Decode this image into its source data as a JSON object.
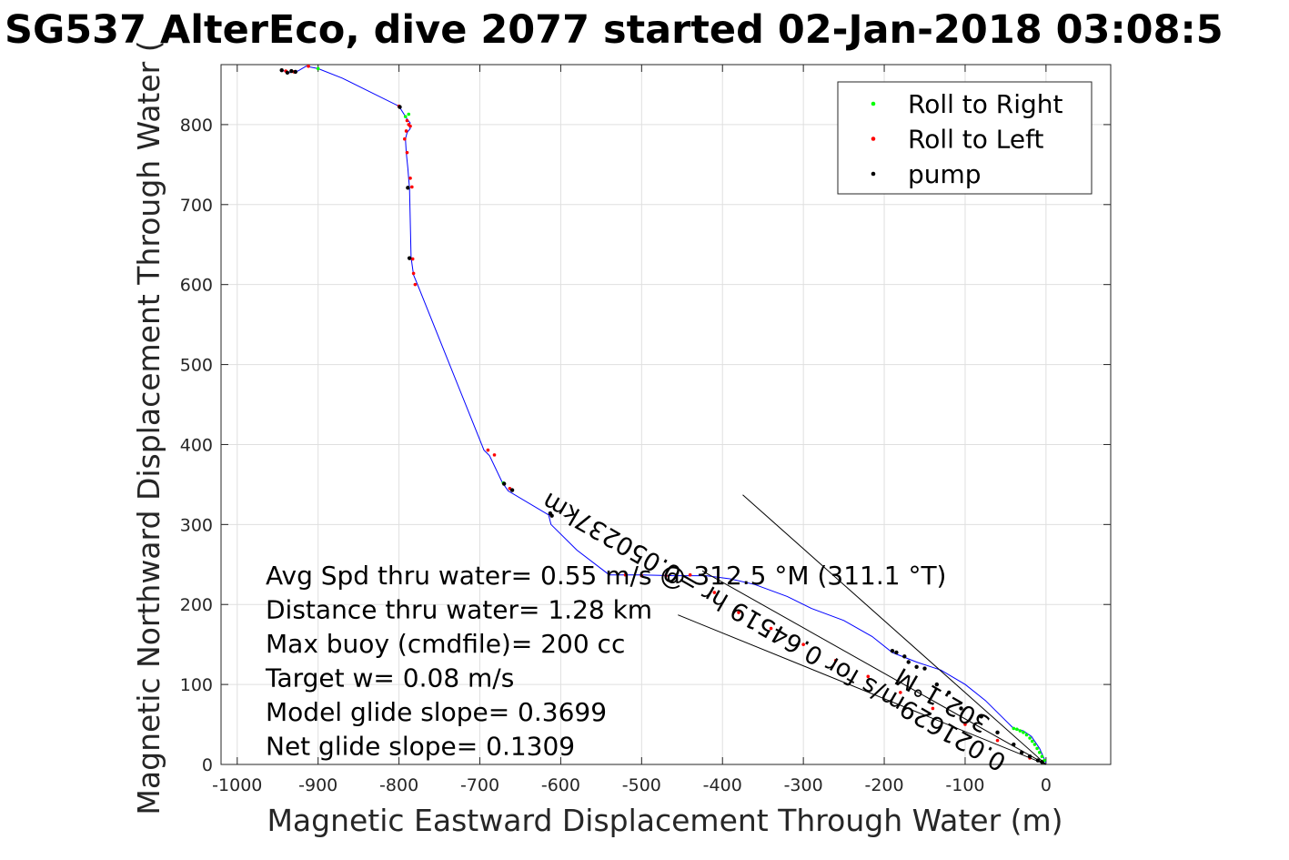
{
  "chart_data": {
    "type": "line",
    "title": "SG537 AlterEco, dive 2077 started 02-Jan-2018 03:08:5",
    "xlabel": "Magnetic Eastward Displacement Through Water (m)",
    "ylabel": "Magnetic Northward Displacement Through Water (",
    "xlim": [
      -1020,
      80
    ],
    "ylim": [
      0,
      875
    ],
    "xticks": [
      -1000,
      -900,
      -800,
      -700,
      -600,
      -500,
      -400,
      -300,
      -200,
      -100,
      0
    ],
    "yticks": [
      0,
      100,
      200,
      300,
      400,
      500,
      600,
      700,
      800
    ],
    "grid": true,
    "legend_position": "top-right",
    "legend": [
      {
        "label": "Roll to Right",
        "color": "#00ff00"
      },
      {
        "label": "Roll to Left",
        "color": "#ff0000"
      },
      {
        "label": "pump",
        "color": "#000000"
      }
    ],
    "series": [
      {
        "kind": "track",
        "color": "#0000ff",
        "x": [
          0,
          -8,
          -18,
          -28,
          -40,
          -55,
          -75,
          -100,
          -130,
          -160,
          -190,
          -215,
          -250,
          -290,
          -320,
          -360,
          -390,
          -420,
          -460,
          -500,
          -540,
          -580,
          -612,
          -615,
          -665,
          -672,
          -688,
          -695,
          -777,
          -782,
          -785,
          -787,
          -788,
          -789,
          -791,
          -792,
          -790,
          -786,
          -788,
          -786,
          -790,
          -800,
          -870,
          -900,
          -915,
          -925,
          -935,
          -945
        ],
        "y": [
          2,
          20,
          35,
          42,
          45,
          60,
          80,
          100,
          118,
          128,
          140,
          160,
          180,
          195,
          210,
          225,
          232,
          236,
          236,
          237,
          237,
          268,
          300,
          312,
          342,
          352,
          386,
          393,
          600,
          612,
          634,
          720,
          732,
          745,
          765,
          782,
          790,
          795,
          800,
          802,
          807,
          823,
          858,
          870,
          873,
          867,
          865,
          868
        ]
      },
      {
        "kind": "roll_right",
        "color": "#00ff00",
        "x": [
          -2,
          -5,
          -8,
          -11,
          -14,
          -17,
          -20,
          -24,
          -28,
          -32,
          -36,
          -40,
          -671,
          -900,
          -788,
          -792
        ],
        "y": [
          5,
          10,
          15,
          20,
          25,
          29,
          33,
          37,
          40,
          42,
          44,
          45,
          352,
          870,
          813,
          810
        ]
      },
      {
        "kind": "roll_left",
        "color": "#ff0000",
        "x": [
          -20,
          -60,
          -100,
          -140,
          -180,
          -220,
          -260,
          -300,
          -340,
          -380,
          -410,
          -440,
          -470,
          -500,
          -520,
          -690,
          -682,
          -663,
          -612,
          -780,
          -782,
          -783,
          -784,
          -786,
          -790,
          -793,
          -791,
          -788,
          -786,
          -790,
          -800,
          -912,
          -930,
          -940
        ],
        "y": [
          8,
          30,
          50,
          70,
          90,
          110,
          130,
          150,
          170,
          190,
          215,
          237,
          236,
          236,
          237,
          393,
          387,
          345,
          312,
          600,
          614,
          632,
          722,
          733,
          765,
          782,
          792,
          800,
          798,
          805,
          823,
          873,
          866,
          867
        ]
      },
      {
        "kind": "pump",
        "color": "#000000",
        "x": [
          -190,
          -185,
          -175,
          -170,
          -160,
          -150,
          -135,
          -120,
          -105,
          -80,
          -60,
          -40,
          -30,
          -20,
          -10,
          -5,
          -613,
          -611,
          -660,
          -670,
          -787,
          -789,
          -799,
          -928,
          -933,
          -938,
          -945
        ],
        "y": [
          142,
          140,
          135,
          128,
          122,
          120,
          100,
          90,
          70,
          60,
          40,
          25,
          15,
          10,
          5,
          3,
          314,
          311,
          343,
          351,
          633,
          721,
          822,
          866,
          867,
          865,
          868
        ]
      },
      {
        "kind": "line",
        "color": "#000000",
        "x": [
          0,
          -375
        ],
        "y": [
          0,
          337
        ]
      },
      {
        "kind": "line",
        "color": "#000000",
        "x": [
          0,
          -455
        ],
        "y": [
          0,
          187
        ]
      },
      {
        "kind": "line",
        "color": "#000000",
        "x": [
          0,
          -425
        ],
        "y": [
          0,
          242
        ]
      }
    ],
    "stats_text": [
      "Avg Spd thru water=  0.55 m/s @ 312.5 °M (311.1 °T)",
      "Distance thru water=  1.28 km",
      "Max buoy (cmdfile)= 200 cc",
      "Target w= 0.08 m/s",
      "Model glide slope= 0.3699",
      "Net glide slope= 0.1309"
    ],
    "rotated_annotations": [
      "0.021629m/s for 0.64519 hr =0.050237km",
      "302.1°M"
    ]
  }
}
